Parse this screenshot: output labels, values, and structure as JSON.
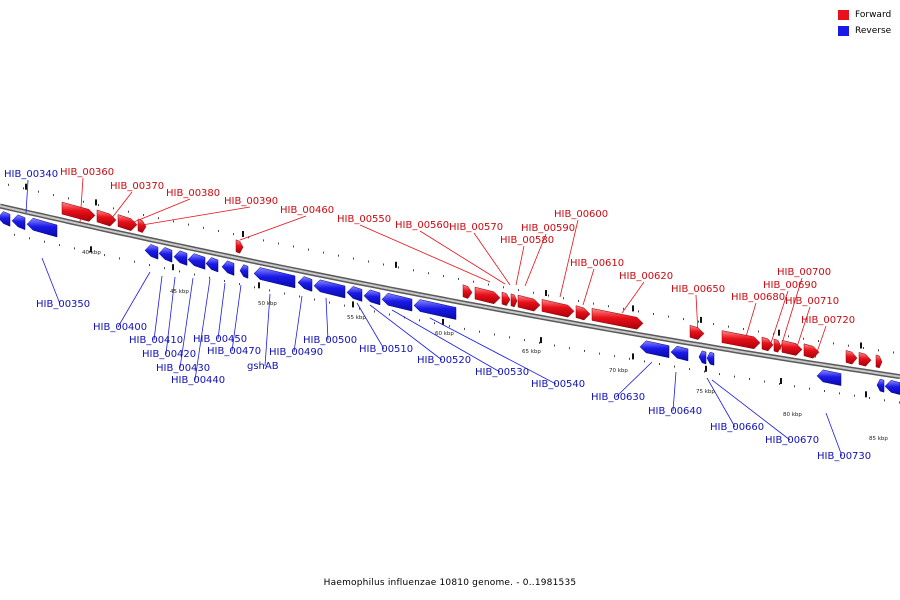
{
  "legend": {
    "forward": {
      "label": "Forward",
      "color": "#e8101a"
    },
    "reverse": {
      "label": "Reverse",
      "color": "#1a1ae8"
    }
  },
  "caption": "Haemophilus influenzae 10810 genome. - 0..1981535",
  "colors": {
    "forward": "#e8101a",
    "reverse": "#1a1ae8",
    "backbone": "#9a9a9a"
  },
  "scale": {
    "labels": [
      "40 kbp",
      "45 kbp",
      "50 kbp",
      "55 kbp",
      "60 kbp",
      "65 kbp",
      "70 kbp",
      "75 kbp",
      "80 kbp",
      "85 kbp"
    ]
  },
  "genes": {
    "forward": [
      "HIB_00360",
      "HIB_00370",
      "HIB_00380",
      "HIB_00390",
      "HIB_00460",
      "HIB_00550",
      "HIB_00560",
      "HIB_00570",
      "HIB_00580",
      "HIB_00590",
      "HIB_00600",
      "HIB_00610",
      "HIB_00620",
      "HIB_00650",
      "HIB_00680",
      "HIB_00690",
      "HIB_00700",
      "HIB_00710",
      "HIB_00720"
    ],
    "reverse": [
      "HIB_00340",
      "HIB_00350",
      "HIB_00400",
      "HIB_00410",
      "HIB_00420",
      "HIB_00430",
      "HIB_00440",
      "HIB_00450",
      "HIB_00470",
      "gshAB",
      "HIB_00490",
      "HIB_00500",
      "HIB_00510",
      "HIB_00520",
      "HIB_00530",
      "HIB_00540",
      "HIB_00630",
      "HIB_00640",
      "HIB_00660",
      "HIB_00670",
      "HIB_00730"
    ]
  }
}
